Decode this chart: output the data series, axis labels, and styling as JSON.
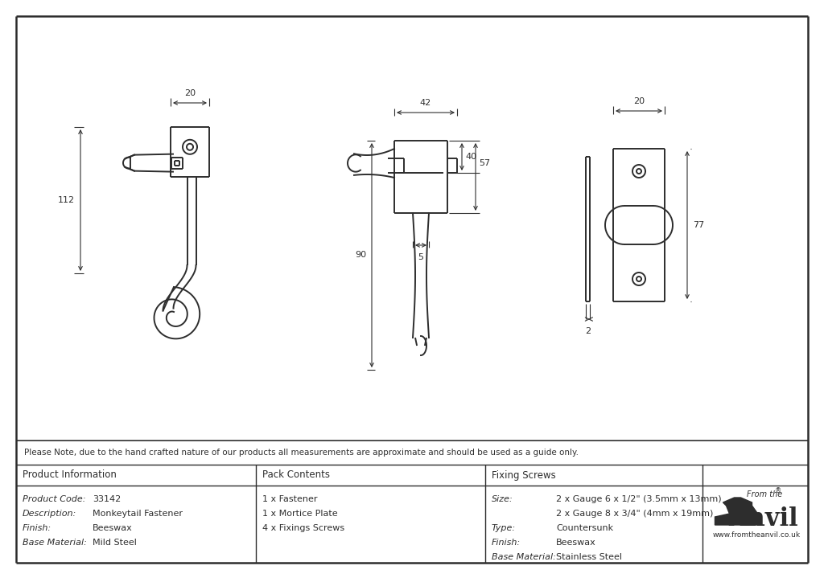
{
  "bg_color": "#ffffff",
  "line_color": "#2d2d2d",
  "note_text": "Please Note, due to the hand crafted nature of our products all measurements are approximate and should be used as a guide only.",
  "table_headers": [
    "Product Information",
    "Pack Contents",
    "Fixing Screws"
  ],
  "product_info": [
    [
      "Product Code:",
      "33142"
    ],
    [
      "Description:",
      "Monkeytail Fastener"
    ],
    [
      "Finish:",
      "Beeswax"
    ],
    [
      "Base Material:",
      "Mild Steel"
    ]
  ],
  "pack_contents": [
    "1 x Fastener",
    "1 x Mortice Plate",
    "4 x Fixings Screws"
  ],
  "fixing_screws": [
    [
      "Size:",
      "2 x Gauge 6 x 1/2\" (3.5mm x 13mm)"
    ],
    [
      "",
      "2 x Gauge 8 x 3/4\" (4mm x 19mm)"
    ],
    [
      "Type:",
      "Countersunk"
    ],
    [
      "Finish:",
      "Beeswax"
    ],
    [
      "Base Material:",
      "Stainless Steel"
    ]
  ]
}
